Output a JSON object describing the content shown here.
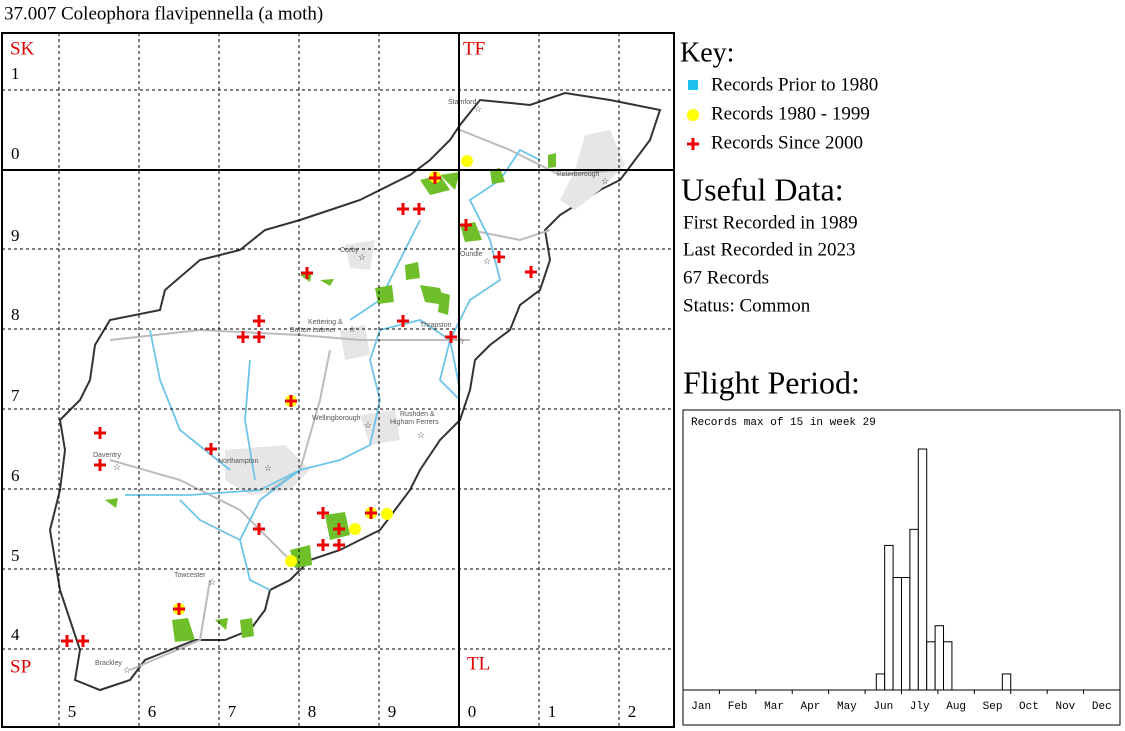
{
  "title": "37.007 Coleophora flavipennella (a moth)",
  "map": {
    "squares": [
      "SK",
      "TF",
      "SP",
      "TL"
    ],
    "row_labels": [
      "1",
      "0",
      "9",
      "8",
      "7",
      "6",
      "5",
      "4"
    ],
    "col_labels": [
      "5",
      "6",
      "7",
      "8",
      "9",
      "0",
      "1",
      "2"
    ],
    "towns": [
      "Stamford",
      "Peterborough",
      "Corby",
      "Oundle",
      "Kettering &",
      "Burton Latimer",
      "Thrapston",
      "Wellingborough",
      "Rushden &",
      "Higham Ferrers",
      "Daventry",
      "Northampton",
      "Towcester",
      "Brackley"
    ]
  },
  "key": {
    "title": "Key:",
    "items": [
      "Records Prior to 1980",
      "Records 1980 - 1999",
      "Records Since 2000"
    ]
  },
  "useful_data": {
    "title": "Useful Data:",
    "lines": [
      "First Recorded in 1989",
      "Last Recorded in 2023",
      "67 Records",
      "Status: Common"
    ]
  },
  "chart_data": {
    "type": "histogram",
    "title": "Flight Period:",
    "subtitle": "Records max of 15 in week 29",
    "months": [
      "Jan",
      "Feb",
      "Mar",
      "Apr",
      "May",
      "Jun",
      "Jly",
      "Aug",
      "Sep",
      "Oct",
      "Nov",
      "Dec"
    ],
    "values": [
      0,
      0,
      0,
      0,
      0,
      0,
      0,
      0,
      0,
      0,
      0,
      0,
      0,
      0,
      0,
      0,
      0,
      0,
      0,
      0,
      0,
      0,
      0,
      1,
      9,
      7,
      7,
      10,
      15,
      3,
      4,
      3,
      0,
      0,
      0,
      0,
      0,
      0,
      1,
      0,
      0,
      0,
      0,
      0,
      0,
      0,
      0,
      0,
      0,
      0,
      0,
      0
    ],
    "ylim": [
      0,
      15
    ],
    "color": "#ffffff"
  }
}
